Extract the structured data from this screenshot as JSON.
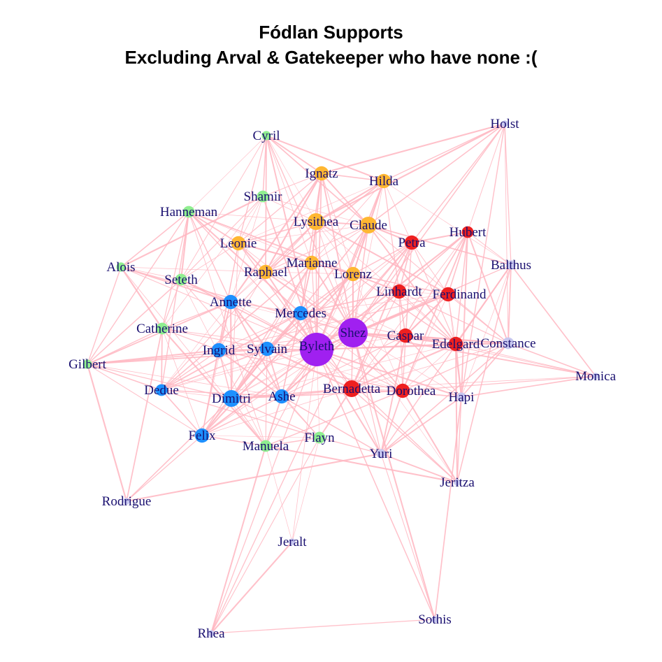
{
  "title": "Fódlan Supports",
  "subtitle": "Excluding Arval & Gatekeeper who have none :(",
  "colors": {
    "edge": "#ffb6c1",
    "label": "#1a1070",
    "purple": "#a020f0",
    "blue": "#1e90ff",
    "orange": "#ffb732",
    "red": "#ee2020",
    "green": "#90ee90",
    "lavender": "#c8c8f0"
  },
  "nodes": [
    {
      "name": "Byleth",
      "group": "purple",
      "weight": 10
    },
    {
      "name": "Shez",
      "group": "purple",
      "weight": 9
    },
    {
      "name": "Cyril",
      "group": "green",
      "weight": 2
    },
    {
      "name": "Holst",
      "group": "lavender",
      "weight": 1
    },
    {
      "name": "Ignatz",
      "group": "orange",
      "weight": 4
    },
    {
      "name": "Hilda",
      "group": "orange",
      "weight": 4
    },
    {
      "name": "Shamir",
      "group": "green",
      "weight": 3
    },
    {
      "name": "Hanneman",
      "group": "green",
      "weight": 3
    },
    {
      "name": "Lysithea",
      "group": "orange",
      "weight": 5
    },
    {
      "name": "Claude",
      "group": "orange",
      "weight": 5
    },
    {
      "name": "Hubert",
      "group": "red",
      "weight": 3
    },
    {
      "name": "Petra",
      "group": "red",
      "weight": 4
    },
    {
      "name": "Leonie",
      "group": "orange",
      "weight": 4
    },
    {
      "name": "Marianne",
      "group": "orange",
      "weight": 4
    },
    {
      "name": "Alois",
      "group": "green",
      "weight": 2
    },
    {
      "name": "Balthus",
      "group": "lavender",
      "weight": 2
    },
    {
      "name": "Raphael",
      "group": "orange",
      "weight": 4
    },
    {
      "name": "Lorenz",
      "group": "orange",
      "weight": 4
    },
    {
      "name": "Seteth",
      "group": "green",
      "weight": 3
    },
    {
      "name": "Linhardt",
      "group": "red",
      "weight": 4
    },
    {
      "name": "Ferdinand",
      "group": "red",
      "weight": 4
    },
    {
      "name": "Annette",
      "group": "blue",
      "weight": 4
    },
    {
      "name": "Mercedes",
      "group": "blue",
      "weight": 4
    },
    {
      "name": "Catherine",
      "group": "green",
      "weight": 3
    },
    {
      "name": "Caspar",
      "group": "red",
      "weight": 4
    },
    {
      "name": "Edelgard",
      "group": "red",
      "weight": 4
    },
    {
      "name": "Constance",
      "group": "lavender",
      "weight": 3
    },
    {
      "name": "Ingrid",
      "group": "blue",
      "weight": 4
    },
    {
      "name": "Sylvain",
      "group": "blue",
      "weight": 4
    },
    {
      "name": "Gilbert",
      "group": "green",
      "weight": 2
    },
    {
      "name": "Monica",
      "group": "lavender",
      "weight": 1
    },
    {
      "name": "Dedue",
      "group": "blue",
      "weight": 3
    },
    {
      "name": "Bernadetta",
      "group": "red",
      "weight": 5
    },
    {
      "name": "Dorothea",
      "group": "red",
      "weight": 4
    },
    {
      "name": "Dimitri",
      "group": "blue",
      "weight": 5
    },
    {
      "name": "Ashe",
      "group": "blue",
      "weight": 4
    },
    {
      "name": "Hapi",
      "group": "lavender",
      "weight": 2
    },
    {
      "name": "Felix",
      "group": "blue",
      "weight": 4
    },
    {
      "name": "Manuela",
      "group": "green",
      "weight": 3
    },
    {
      "name": "Flayn",
      "group": "green",
      "weight": 3
    },
    {
      "name": "Yuri",
      "group": "lavender",
      "weight": 2
    },
    {
      "name": "Jeritza",
      "group": "lavender",
      "weight": 1
    },
    {
      "name": "Rodrigue",
      "group": "lavender",
      "weight": 1
    },
    {
      "name": "Jeralt",
      "group": "lavender",
      "weight": 1
    },
    {
      "name": "Sothis",
      "group": "lavender",
      "weight": 1
    },
    {
      "name": "Rhea",
      "group": "lavender",
      "weight": 1
    }
  ],
  "edges": [
    [
      "Byleth",
      "Shez"
    ],
    [
      "Byleth",
      "Cyril"
    ],
    [
      "Byleth",
      "Ignatz"
    ],
    [
      "Byleth",
      "Hilda"
    ],
    [
      "Byleth",
      "Shamir"
    ],
    [
      "Byleth",
      "Hanneman"
    ],
    [
      "Byleth",
      "Lysithea"
    ],
    [
      "Byleth",
      "Claude"
    ],
    [
      "Byleth",
      "Hubert"
    ],
    [
      "Byleth",
      "Petra"
    ],
    [
      "Byleth",
      "Leonie"
    ],
    [
      "Byleth",
      "Marianne"
    ],
    [
      "Byleth",
      "Alois"
    ],
    [
      "Byleth",
      "Raphael"
    ],
    [
      "Byleth",
      "Lorenz"
    ],
    [
      "Byleth",
      "Seteth"
    ],
    [
      "Byleth",
      "Linhardt"
    ],
    [
      "Byleth",
      "Ferdinand"
    ],
    [
      "Byleth",
      "Annette"
    ],
    [
      "Byleth",
      "Mercedes"
    ],
    [
      "Byleth",
      "Catherine"
    ],
    [
      "Byleth",
      "Caspar"
    ],
    [
      "Byleth",
      "Edelgard"
    ],
    [
      "Byleth",
      "Ingrid"
    ],
    [
      "Byleth",
      "Sylvain"
    ],
    [
      "Byleth",
      "Gilbert"
    ],
    [
      "Byleth",
      "Dedue"
    ],
    [
      "Byleth",
      "Bernadetta"
    ],
    [
      "Byleth",
      "Dorothea"
    ],
    [
      "Byleth",
      "Dimitri"
    ],
    [
      "Byleth",
      "Ashe"
    ],
    [
      "Byleth",
      "Felix"
    ],
    [
      "Byleth",
      "Manuela"
    ],
    [
      "Byleth",
      "Flayn"
    ],
    [
      "Byleth",
      "Yuri"
    ],
    [
      "Byleth",
      "Jeralt"
    ],
    [
      "Byleth",
      "Sothis"
    ],
    [
      "Byleth",
      "Rhea"
    ],
    [
      "Byleth",
      "Balthus"
    ],
    [
      "Byleth",
      "Constance"
    ],
    [
      "Byleth",
      "Hapi"
    ],
    [
      "Byleth",
      "Jeritza"
    ],
    [
      "Shez",
      "Cyril"
    ],
    [
      "Shez",
      "Ignatz"
    ],
    [
      "Shez",
      "Hilda"
    ],
    [
      "Shez",
      "Holst"
    ],
    [
      "Shez",
      "Lysithea"
    ],
    [
      "Shez",
      "Claude"
    ],
    [
      "Shez",
      "Hubert"
    ],
    [
      "Shez",
      "Petra"
    ],
    [
      "Shez",
      "Leonie"
    ],
    [
      "Shez",
      "Marianne"
    ],
    [
      "Shez",
      "Raphael"
    ],
    [
      "Shez",
      "Lorenz"
    ],
    [
      "Shez",
      "Linhardt"
    ],
    [
      "Shez",
      "Ferdinand"
    ],
    [
      "Shez",
      "Annette"
    ],
    [
      "Shez",
      "Mercedes"
    ],
    [
      "Shez",
      "Caspar"
    ],
    [
      "Shez",
      "Edelgard"
    ],
    [
      "Shez",
      "Constance"
    ],
    [
      "Shez",
      "Ingrid"
    ],
    [
      "Shez",
      "Sylvain"
    ],
    [
      "Shez",
      "Monica"
    ],
    [
      "Shez",
      "Dedue"
    ],
    [
      "Shez",
      "Bernadetta"
    ],
    [
      "Shez",
      "Dorothea"
    ],
    [
      "Shez",
      "Dimitri"
    ],
    [
      "Shez",
      "Ashe"
    ],
    [
      "Shez",
      "Hapi"
    ],
    [
      "Shez",
      "Felix"
    ],
    [
      "Shez",
      "Yuri"
    ],
    [
      "Shez",
      "Jeritza"
    ],
    [
      "Shez",
      "Rhea"
    ],
    [
      "Shez",
      "Balthus"
    ],
    [
      "Shez",
      "Sothis"
    ],
    [
      "Cyril",
      "Shamir"
    ],
    [
      "Cyril",
      "Leonie"
    ],
    [
      "Cyril",
      "Hilda"
    ],
    [
      "Cyril",
      "Lysithea"
    ],
    [
      "Cyril",
      "Seteth"
    ],
    [
      "Cyril",
      "Hanneman"
    ],
    [
      "Cyril",
      "Claude"
    ],
    [
      "Cyril",
      "Raphael"
    ],
    [
      "Cyril",
      "Marianne"
    ],
    [
      "Cyril",
      "Ignatz"
    ],
    [
      "Holst",
      "Hilda"
    ],
    [
      "Holst",
      "Claude"
    ],
    [
      "Holst",
      "Balthus"
    ],
    [
      "Holst",
      "Petra"
    ],
    [
      "Holst",
      "Constance"
    ],
    [
      "Holst",
      "Hubert"
    ],
    [
      "Holst",
      "Lysithea"
    ],
    [
      "Holst",
      "Ignatz"
    ],
    [
      "Holst",
      "Hapi"
    ],
    [
      "Ignatz",
      "Hilda"
    ],
    [
      "Ignatz",
      "Lysithea"
    ],
    [
      "Ignatz",
      "Claude"
    ],
    [
      "Ignatz",
      "Leonie"
    ],
    [
      "Ignatz",
      "Marianne"
    ],
    [
      "Ignatz",
      "Raphael"
    ],
    [
      "Ignatz",
      "Lorenz"
    ],
    [
      "Ignatz",
      "Shamir"
    ],
    [
      "Ignatz",
      "Mercedes"
    ],
    [
      "Ignatz",
      "Annette"
    ],
    [
      "Hilda",
      "Lysithea"
    ],
    [
      "Hilda",
      "Claude"
    ],
    [
      "Hilda",
      "Leonie"
    ],
    [
      "Hilda",
      "Marianne"
    ],
    [
      "Hilda",
      "Raphael"
    ],
    [
      "Hilda",
      "Lorenz"
    ],
    [
      "Hilda",
      "Petra"
    ],
    [
      "Hilda",
      "Balthus"
    ],
    [
      "Hilda",
      "Linhardt"
    ],
    [
      "Shamir",
      "Leonie"
    ],
    [
      "Shamir",
      "Lysithea"
    ],
    [
      "Shamir",
      "Catherine"
    ],
    [
      "Shamir",
      "Seteth"
    ],
    [
      "Shamir",
      "Annette"
    ],
    [
      "Shamir",
      "Alois"
    ],
    [
      "Shamir",
      "Claude"
    ],
    [
      "Hanneman",
      "Seteth"
    ],
    [
      "Hanneman",
      "Manuela"
    ],
    [
      "Hanneman",
      "Catherine"
    ],
    [
      "Hanneman",
      "Alois"
    ],
    [
      "Hanneman",
      "Leonie"
    ],
    [
      "Hanneman",
      "Annette"
    ],
    [
      "Hanneman",
      "Mercedes"
    ],
    [
      "Hanneman",
      "Lysithea"
    ],
    [
      "Hanneman",
      "Marianne"
    ],
    [
      "Hanneman",
      "Dedue"
    ],
    [
      "Hanneman",
      "Gilbert"
    ],
    [
      "Hanneman",
      "Linhardt"
    ],
    [
      "Lysithea",
      "Claude"
    ],
    [
      "Lysithea",
      "Leonie"
    ],
    [
      "Lysithea",
      "Marianne"
    ],
    [
      "Lysithea",
      "Raphael"
    ],
    [
      "Lysithea",
      "Lorenz"
    ],
    [
      "Lysithea",
      "Annette"
    ],
    [
      "Lysithea",
      "Edelgard"
    ],
    [
      "Lysithea",
      "Ferdinand"
    ],
    [
      "Lysithea",
      "Dedue"
    ],
    [
      "Claude",
      "Leonie"
    ],
    [
      "Claude",
      "Marianne"
    ],
    [
      "Claude",
      "Raphael"
    ],
    [
      "Claude",
      "Lorenz"
    ],
    [
      "Claude",
      "Petra"
    ],
    [
      "Claude",
      "Dimitri"
    ],
    [
      "Claude",
      "Edelgard"
    ],
    [
      "Claude",
      "Constance"
    ],
    [
      "Claude",
      "Balthus"
    ],
    [
      "Hubert",
      "Petra"
    ],
    [
      "Hubert",
      "Ferdinand"
    ],
    [
      "Hubert",
      "Edelgard"
    ],
    [
      "Hubert",
      "Linhardt"
    ],
    [
      "Hubert",
      "Caspar"
    ],
    [
      "Hubert",
      "Bernadetta"
    ],
    [
      "Hubert",
      "Dorothea"
    ],
    [
      "Hubert",
      "Balthus"
    ],
    [
      "Hubert",
      "Constance"
    ],
    [
      "Hubert",
      "Hapi"
    ],
    [
      "Petra",
      "Linhardt"
    ],
    [
      "Petra",
      "Ferdinand"
    ],
    [
      "Petra",
      "Caspar"
    ],
    [
      "Petra",
      "Edelgard"
    ],
    [
      "Petra",
      "Bernadetta"
    ],
    [
      "Petra",
      "Dorothea"
    ],
    [
      "Petra",
      "Lorenz"
    ],
    [
      "Petra",
      "Sylvain"
    ],
    [
      "Petra",
      "Ashe"
    ],
    [
      "Petra",
      "Dimitri"
    ],
    [
      "Leonie",
      "Marianne"
    ],
    [
      "Leonie",
      "Raphael"
    ],
    [
      "Leonie",
      "Lorenz"
    ],
    [
      "Leonie",
      "Seteth"
    ],
    [
      "Leonie",
      "Ingrid"
    ],
    [
      "Leonie",
      "Felix"
    ],
    [
      "Leonie",
      "Dimitri"
    ],
    [
      "Marianne",
      "Raphael"
    ],
    [
      "Marianne",
      "Lorenz"
    ],
    [
      "Marianne",
      "Mercedes"
    ],
    [
      "Marianne",
      "Dimitri"
    ],
    [
      "Marianne",
      "Sylvain"
    ],
    [
      "Marianne",
      "Felix"
    ],
    [
      "Marianne",
      "Ashe"
    ],
    [
      "Marianne",
      "Dedue"
    ],
    [
      "Alois",
      "Catherine"
    ],
    [
      "Alois",
      "Seteth"
    ],
    [
      "Alois",
      "Gilbert"
    ],
    [
      "Alois",
      "Manuela"
    ],
    [
      "Alois",
      "Raphael"
    ],
    [
      "Alois",
      "Annette"
    ],
    [
      "Alois",
      "Shez"
    ],
    [
      "Balthus",
      "Constance"
    ],
    [
      "Balthus",
      "Hapi"
    ],
    [
      "Balthus",
      "Yuri"
    ],
    [
      "Balthus",
      "Edelgard"
    ],
    [
      "Balthus",
      "Monica"
    ],
    [
      "Balthus",
      "Jeritza"
    ],
    [
      "Raphael",
      "Lorenz"
    ],
    [
      "Raphael",
      "Ignatz"
    ],
    [
      "Raphael",
      "Annette"
    ],
    [
      "Raphael",
      "Ingrid"
    ],
    [
      "Raphael",
      "Caspar"
    ],
    [
      "Lorenz",
      "Ferdinand"
    ],
    [
      "Lorenz",
      "Linhardt"
    ],
    [
      "Lorenz",
      "Mercedes"
    ],
    [
      "Lorenz",
      "Edelgard"
    ],
    [
      "Lorenz",
      "Bernadetta"
    ],
    [
      "Lorenz",
      "Dorothea"
    ],
    [
      "Lorenz",
      "Sylvain"
    ],
    [
      "Lorenz",
      "Felix"
    ],
    [
      "Seteth",
      "Catherine"
    ],
    [
      "Seteth",
      "Flayn"
    ],
    [
      "Seteth",
      "Manuela"
    ],
    [
      "Seteth",
      "Annette"
    ],
    [
      "Seteth",
      "Gilbert"
    ],
    [
      "Linhardt",
      "Ferdinand"
    ],
    [
      "Linhardt",
      "Caspar"
    ],
    [
      "Linhardt",
      "Edelgard"
    ],
    [
      "Linhardt",
      "Bernadetta"
    ],
    [
      "Linhardt",
      "Dorothea"
    ],
    [
      "Linhardt",
      "Constance"
    ],
    [
      "Linhardt",
      "Mercedes"
    ],
    [
      "Linhardt",
      "Ashe"
    ],
    [
      "Ferdinand",
      "Caspar"
    ],
    [
      "Ferdinand",
      "Edelgard"
    ],
    [
      "Ferdinand",
      "Bernadetta"
    ],
    [
      "Ferdinand",
      "Dorothea"
    ],
    [
      "Ferdinand",
      "Constance"
    ],
    [
      "Ferdinand",
      "Mercedes"
    ],
    [
      "Ferdinand",
      "Ingrid"
    ],
    [
      "Ferdinand",
      "Hapi"
    ],
    [
      "Annette",
      "Mercedes"
    ],
    [
      "Annette",
      "Ingrid"
    ],
    [
      "Annette",
      "Sylvain"
    ],
    [
      "Annette",
      "Dimitri"
    ],
    [
      "Annette",
      "Ashe"
    ],
    [
      "Annette",
      "Felix"
    ],
    [
      "Annette",
      "Dedue"
    ],
    [
      "Annette",
      "Gilbert"
    ],
    [
      "Annette",
      "Catherine"
    ],
    [
      "Mercedes",
      "Ingrid"
    ],
    [
      "Mercedes",
      "Sylvain"
    ],
    [
      "Mercedes",
      "Dimitri"
    ],
    [
      "Mercedes",
      "Ashe"
    ],
    [
      "Mercedes",
      "Felix"
    ],
    [
      "Mercedes",
      "Dedue"
    ],
    [
      "Mercedes",
      "Caspar"
    ],
    [
      "Mercedes",
      "Dorothea"
    ],
    [
      "Mercedes",
      "Bernadetta"
    ],
    [
      "Catherine",
      "Ingrid"
    ],
    [
      "Catherine",
      "Gilbert"
    ],
    [
      "Catherine",
      "Manuela"
    ],
    [
      "Catherine",
      "Felix"
    ],
    [
      "Catherine",
      "Dedue"
    ],
    [
      "Catherine",
      "Rodrigue"
    ],
    [
      "Catherine",
      "Sylvain"
    ],
    [
      "Caspar",
      "Edelgard"
    ],
    [
      "Caspar",
      "Bernadetta"
    ],
    [
      "Caspar",
      "Dorothea"
    ],
    [
      "Caspar",
      "Constance"
    ],
    [
      "Caspar",
      "Hapi"
    ],
    [
      "Caspar",
      "Monica"
    ],
    [
      "Caspar",
      "Ashe"
    ],
    [
      "Caspar",
      "Yuri"
    ],
    [
      "Edelgard",
      "Bernadetta"
    ],
    [
      "Edelgard",
      "Dorothea"
    ],
    [
      "Edelgard",
      "Constance"
    ],
    [
      "Edelgard",
      "Monica"
    ],
    [
      "Edelgard",
      "Hapi"
    ],
    [
      "Edelgard",
      "Dimitri"
    ],
    [
      "Edelgard",
      "Jeritza"
    ],
    [
      "Constance",
      "Hapi"
    ],
    [
      "Constance",
      "Yuri"
    ],
    [
      "Constance",
      "Monica"
    ],
    [
      "Constance",
      "Dorothea"
    ],
    [
      "Constance",
      "Bernadetta"
    ],
    [
      "Ingrid",
      "Sylvain"
    ],
    [
      "Ingrid",
      "Dimitri"
    ],
    [
      "Ingrid",
      "Ashe"
    ],
    [
      "Ingrid",
      "Felix"
    ],
    [
      "Ingrid",
      "Dedue"
    ],
    [
      "Ingrid",
      "Gilbert"
    ],
    [
      "Ingrid",
      "Dorothea"
    ],
    [
      "Sylvain",
      "Dimitri"
    ],
    [
      "Sylvain",
      "Ashe"
    ],
    [
      "Sylvain",
      "Felix"
    ],
    [
      "Sylvain",
      "Dedue"
    ],
    [
      "Sylvain",
      "Gilbert"
    ],
    [
      "Sylvain",
      "Dorothea"
    ],
    [
      "Sylvain",
      "Bernadetta"
    ],
    [
      "Sylvain",
      "Manuela"
    ],
    [
      "Gilbert",
      "Dedue"
    ],
    [
      "Gilbert",
      "Felix"
    ],
    [
      "Gilbert",
      "Dimitri"
    ],
    [
      "Gilbert",
      "Rodrigue"
    ],
    [
      "Gilbert",
      "Ashe"
    ],
    [
      "Monica",
      "Hapi"
    ],
    [
      "Monica",
      "Dorothea"
    ],
    [
      "Monica",
      "Bernadetta"
    ],
    [
      "Dedue",
      "Dimitri"
    ],
    [
      "Dedue",
      "Ashe"
    ],
    [
      "Dedue",
      "Felix"
    ],
    [
      "Dedue",
      "Flayn"
    ],
    [
      "Bernadetta",
      "Dorothea"
    ],
    [
      "Bernadetta",
      "Yuri"
    ],
    [
      "Bernadetta",
      "Hapi"
    ],
    [
      "Bernadetta",
      "Dimitri"
    ],
    [
      "Bernadetta",
      "Ashe"
    ],
    [
      "Bernadetta",
      "Felix"
    ],
    [
      "Bernadetta",
      "Jeritza"
    ],
    [
      "Bernadetta",
      "Flayn"
    ],
    [
      "Dorothea",
      "Hapi"
    ],
    [
      "Dorothea",
      "Yuri"
    ],
    [
      "Dorothea",
      "Manuela"
    ],
    [
      "Dorothea",
      "Dimitri"
    ],
    [
      "Dorothea",
      "Jeritza"
    ],
    [
      "Dimitri",
      "Ashe"
    ],
    [
      "Dimitri",
      "Felix"
    ],
    [
      "Dimitri",
      "Rodrigue"
    ],
    [
      "Dimitri",
      "Flayn"
    ],
    [
      "Dimitri",
      "Manuela"
    ],
    [
      "Ashe",
      "Felix"
    ],
    [
      "Ashe",
      "Flayn"
    ],
    [
      "Ashe",
      "Manuela"
    ],
    [
      "Ashe",
      "Yuri"
    ],
    [
      "Hapi",
      "Yuri"
    ],
    [
      "Hapi",
      "Jeritza"
    ],
    [
      "Hapi",
      "Sothis"
    ],
    [
      "Felix",
      "Rodrigue"
    ],
    [
      "Felix",
      "Manuela"
    ],
    [
      "Felix",
      "Flayn"
    ],
    [
      "Manuela",
      "Flayn"
    ],
    [
      "Manuela",
      "Jeralt"
    ],
    [
      "Manuela",
      "Rhea"
    ],
    [
      "Manuela",
      "Jeritza"
    ],
    [
      "Flayn",
      "Yuri"
    ],
    [
      "Flayn",
      "Jeralt"
    ],
    [
      "Flayn",
      "Rhea"
    ],
    [
      "Yuri",
      "Jeritza"
    ],
    [
      "Yuri",
      "Sothis"
    ],
    [
      "Yuri",
      "Rodrigue"
    ],
    [
      "Jeralt",
      "Rhea"
    ],
    [
      "Sothis",
      "Rhea"
    ]
  ]
}
